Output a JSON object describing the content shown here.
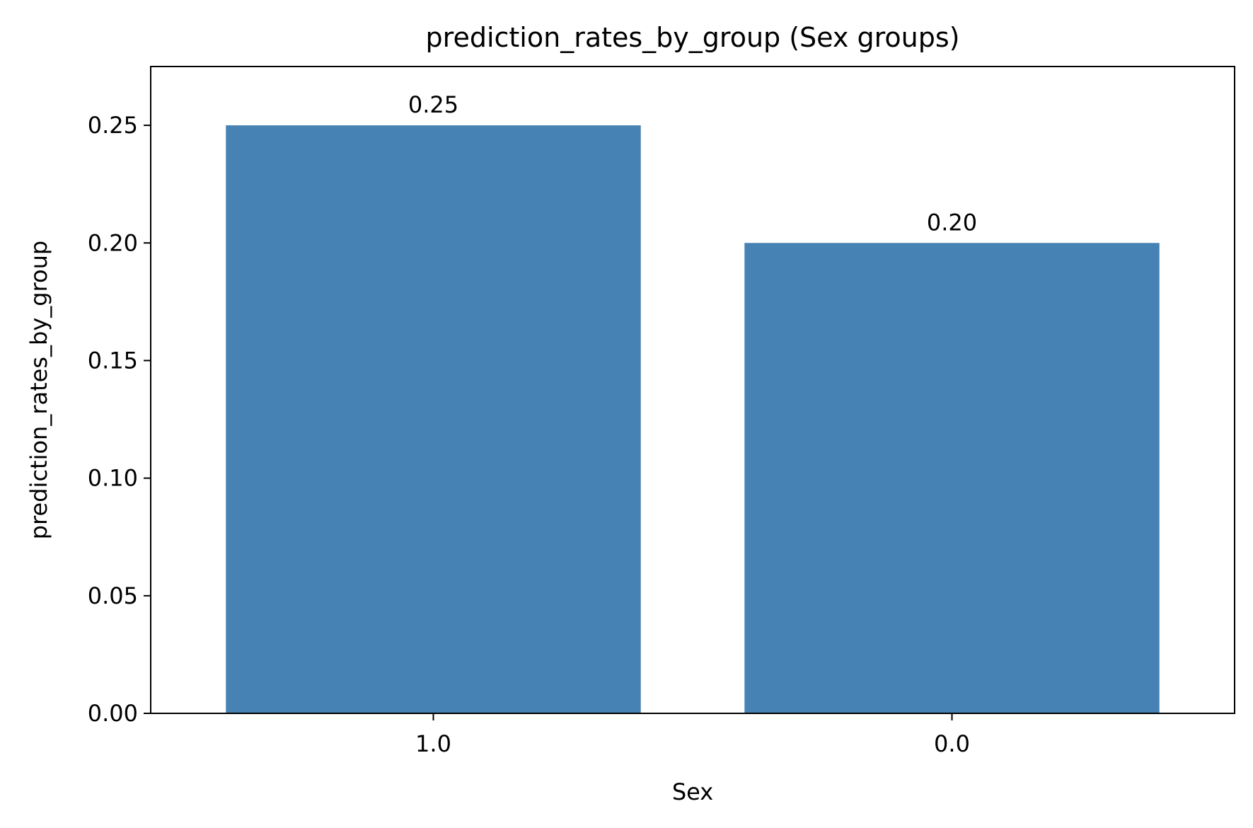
{
  "chart_data": {
    "type": "bar",
    "title": "prediction_rates_by_group (Sex groups)",
    "xlabel": "Sex",
    "ylabel": "prediction_rates_by_group",
    "categories": [
      "1.0",
      "0.0"
    ],
    "values": [
      0.25,
      0.2
    ],
    "data_labels": [
      "0.25",
      "0.20"
    ],
    "ylim": [
      0,
      0.275
    ],
    "yticks": [
      0.0,
      0.05,
      0.1,
      0.15,
      0.2,
      0.25
    ],
    "ytick_labels": [
      "0.00",
      "0.05",
      "0.10",
      "0.15",
      "0.20",
      "0.25"
    ],
    "grid": false,
    "bar_color": "#4682b4"
  }
}
